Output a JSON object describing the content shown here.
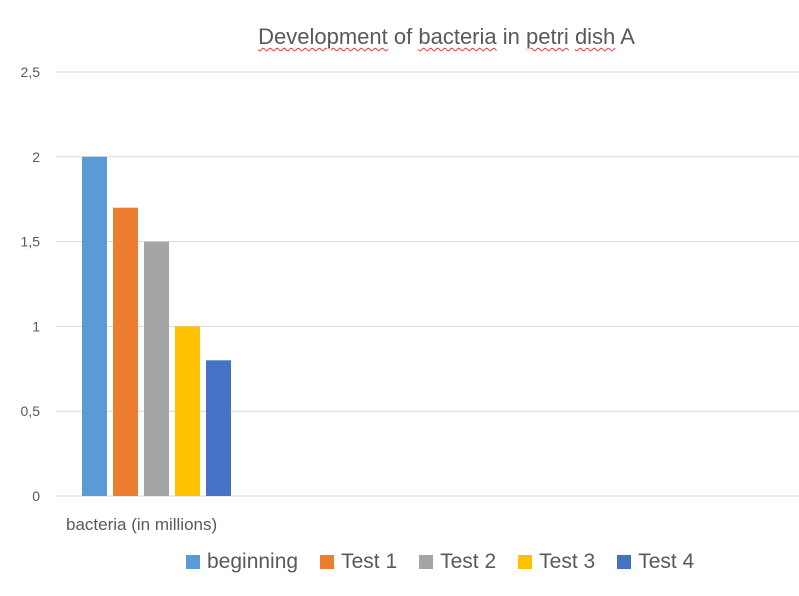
{
  "chart_data": {
    "type": "bar",
    "title_words": [
      "Development",
      "of",
      "bacteria",
      "in",
      "petri",
      "dish",
      "A"
    ],
    "title_misspelled": [
      0,
      2,
      4,
      5
    ],
    "xlabel": "",
    "ylabel": "",
    "categories": [
      "bacteria (in millions)"
    ],
    "series": [
      {
        "name": "beginning",
        "values": [
          2.0
        ],
        "color": "#5b9bd5"
      },
      {
        "name": "Test 1",
        "values": [
          1.7
        ],
        "color": "#ed7d31"
      },
      {
        "name": "Test 2",
        "values": [
          1.5
        ],
        "color": "#a5a5a5"
      },
      {
        "name": "Test 3",
        "values": [
          1.0
        ],
        "color": "#ffc000"
      },
      {
        "name": "Test 4",
        "values": [
          0.8
        ],
        "color": "#4472c4"
      }
    ],
    "yticks": [
      "0",
      "0,5",
      "1",
      "1,5",
      "2",
      "2,5"
    ],
    "ytick_values": [
      0,
      0.5,
      1,
      1.5,
      2,
      2.5
    ],
    "ylim": [
      0,
      2.5
    ],
    "grid": true,
    "legend": "bottom"
  }
}
